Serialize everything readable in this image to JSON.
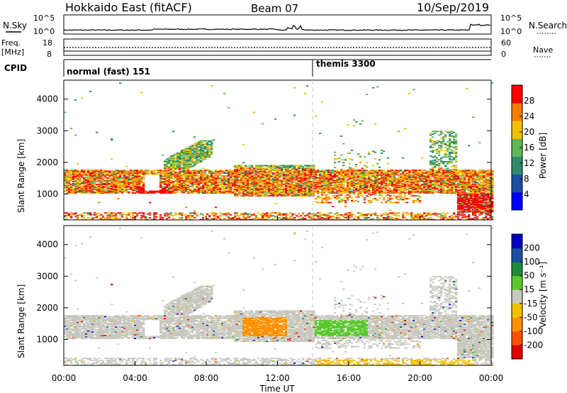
{
  "header": {
    "title": "Hokkaido East (fitACF)",
    "beam": "Beam 07",
    "date": "10/Sep/2019"
  },
  "top_panels": {
    "nsky_label": "N.Sky",
    "nsearch_label": "N.Search",
    "nsky_ticks": [
      "10^5",
      "10^0"
    ],
    "nsearch_ticks": [
      "10^5",
      "10^0"
    ],
    "freq_label_1": "Freq.",
    "freq_label_2": "[MHz]",
    "freq_ticks": [
      "18",
      "8"
    ],
    "nave_label": "Nave",
    "nave_ticks": [
      "60",
      "0"
    ],
    "cpid_label": "CPID",
    "cpid_segments": [
      {
        "label": "normal (fast) 151",
        "start": "00:00",
        "end": "14:00"
      },
      {
        "label": "themis 3300",
        "start": "14:00",
        "end": "24:00"
      }
    ]
  },
  "colors": {
    "power": [
      "#0000ff",
      "#1a4fa0",
      "#2f8a6a",
      "#5fb85a",
      "#f0c000",
      "#f57d00",
      "#ff0000"
    ],
    "velocity": [
      "#e00000",
      "#ff5000",
      "#ff9000",
      "#f0c000",
      "#c8c8c0",
      "#5cc830",
      "#1f8a3c",
      "#1a4fa0",
      "#0000c0"
    ]
  },
  "chart_data": [
    {
      "type": "heatmap",
      "quantity": "Power",
      "ylabel": "Slant Range [km]",
      "ylim": [
        180,
        4600
      ],
      "yticks": [
        "4000",
        "3000",
        "2000",
        "1000"
      ],
      "xlim": [
        "00:00",
        "24:00"
      ],
      "colorbar_label": "Power [dB]",
      "colorbar_ticks": [
        "28",
        "24",
        "20",
        "16",
        "12",
        "8",
        "4"
      ]
    },
    {
      "type": "heatmap",
      "quantity": "Velocity",
      "ylabel": "Slant Range [km]",
      "ylim": [
        180,
        4600
      ],
      "yticks": [
        "4000",
        "3000",
        "2000",
        "1000"
      ],
      "xlabel": "Time UT",
      "xticks": [
        "00:00",
        "04:00",
        "08:00",
        "12:00",
        "16:00",
        "20:00",
        "00:00"
      ],
      "xlim": [
        "00:00",
        "24:00"
      ],
      "colorbar_label": "Velocity [m s⁻¹]",
      "colorbar_ticks": [
        "200",
        "100",
        "50",
        "15",
        "-15",
        "-50",
        "-100",
        "-200"
      ]
    }
  ]
}
